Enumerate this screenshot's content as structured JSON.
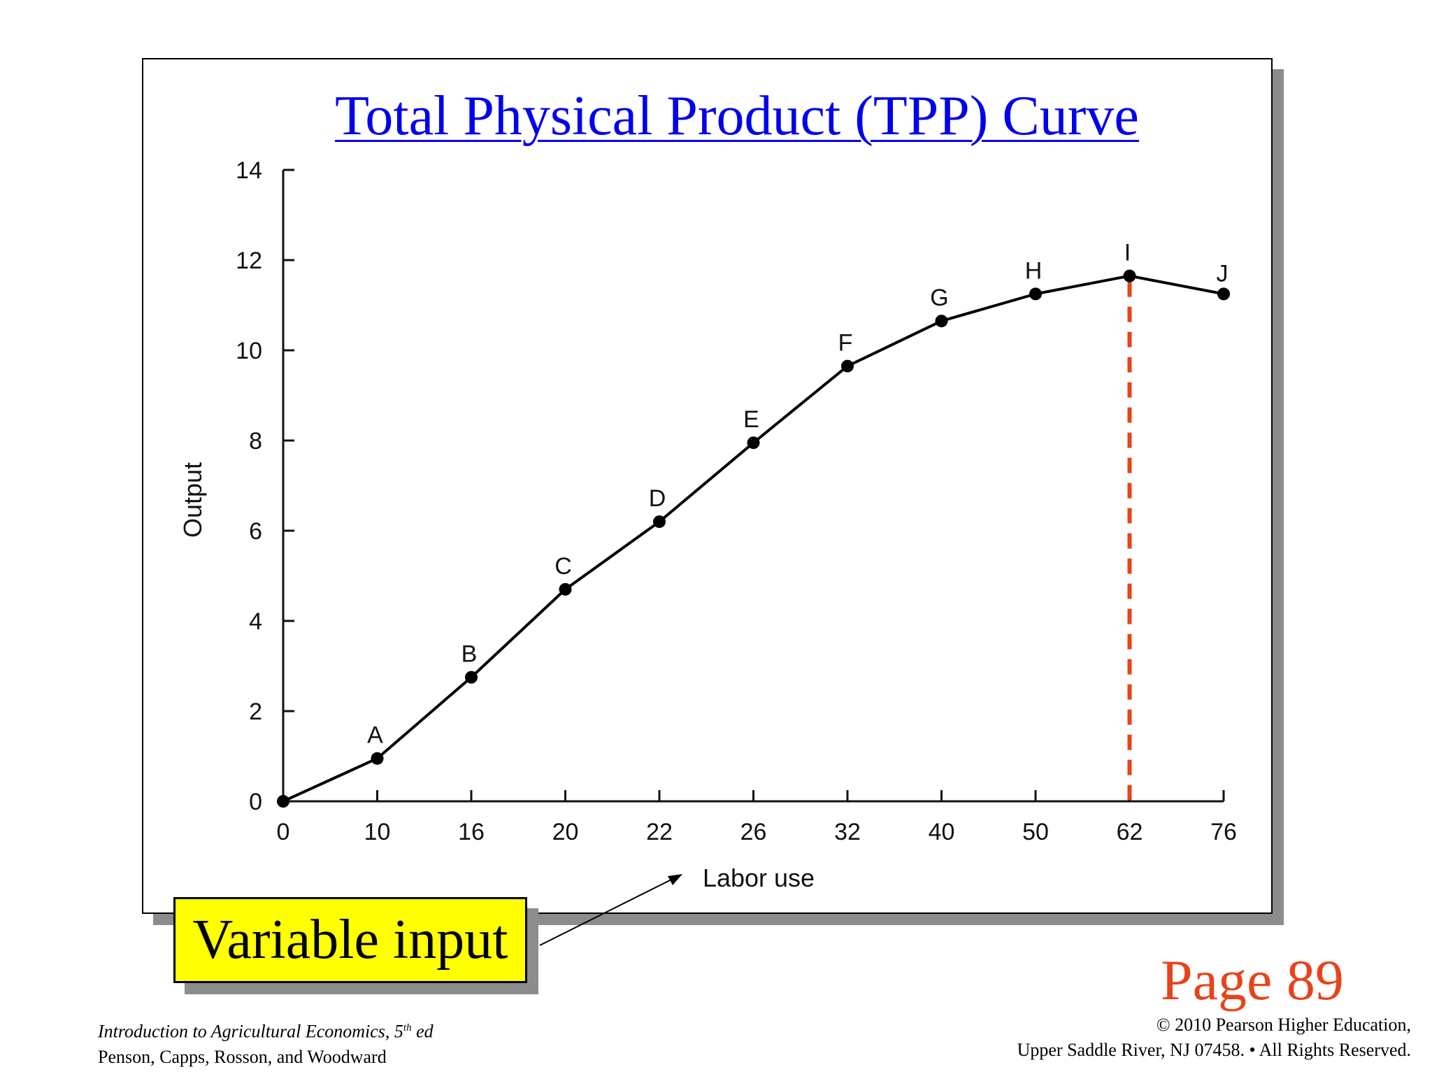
{
  "chart_data": {
    "type": "line",
    "title": "Total Physical Product (TPP) Curve",
    "xlabel": "Labor use",
    "ylabel": "Output",
    "x_categories": [
      "0",
      "10",
      "16",
      "20",
      "22",
      "26",
      "32",
      "40",
      "50",
      "62",
      "76"
    ],
    "yticks": [
      "0",
      "2",
      "4",
      "6",
      "8",
      "10",
      "12",
      "14"
    ],
    "ylim": [
      0,
      14
    ],
    "grid": false,
    "series": [
      {
        "labels": [
          "",
          "A",
          "B",
          "C",
          "D",
          "E",
          "F",
          "G",
          "H",
          "I",
          "J"
        ],
        "x": [
          0,
          10,
          16,
          20,
          22,
          26,
          32,
          40,
          50,
          62,
          76
        ],
        "y": [
          0,
          0.95,
          2.75,
          4.7,
          6.2,
          7.95,
          9.65,
          10.65,
          11.25,
          11.65,
          11.25
        ],
        "color": "#000000"
      }
    ],
    "reference_line": {
      "x": 62,
      "style": "dashed",
      "color": "#e8431a"
    }
  },
  "annotation": {
    "text": "Variable input",
    "color": "#ffff00"
  },
  "page_ref": "Page 89",
  "footer": {
    "book_title": "Introduction to Agricultural Economics, 5",
    "edition_sup": "th",
    "edition_suffix": " ed",
    "authors": "Penson, Capps, Rosson, and Woodward",
    "copyright": "© 2010 Pearson Higher Education,",
    "address": "Upper Saddle River, NJ 07458. • All Rights Reserved."
  },
  "colors": {
    "title": "#0000ee",
    "page_ref": "#e8431a",
    "reference_line": "#e8431a"
  }
}
